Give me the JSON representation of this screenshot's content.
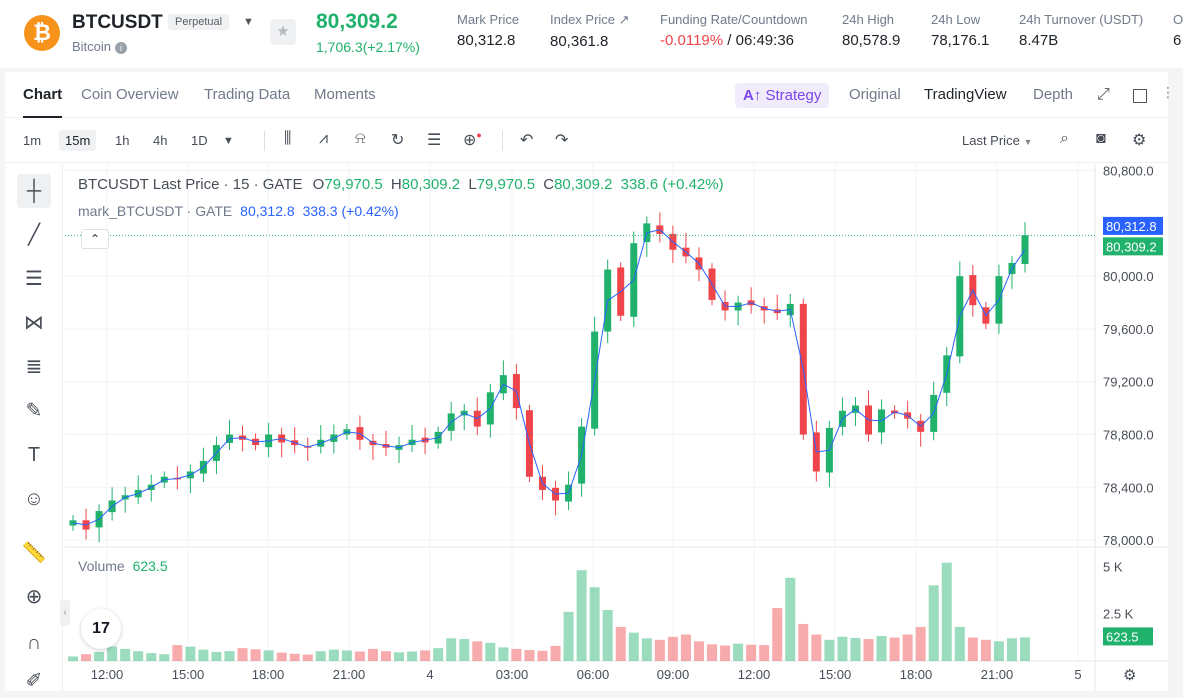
{
  "header": {
    "symbol": "BTCUSDT",
    "contract_type": "Perpetual",
    "coin_name": "Bitcoin",
    "last_price": "80,309.2",
    "change": "1,706.3(+2.17%)",
    "stats": [
      {
        "label": "Mark Price",
        "value": "80,312.8"
      },
      {
        "label": "Index Price ↗",
        "value": "80,361.8"
      },
      {
        "label": "Funding Rate/Countdown",
        "value_neg": "-0.0119%",
        "value": " / 06:49:36"
      },
      {
        "label": "24h High",
        "value": "80,578.9"
      },
      {
        "label": "24h Low",
        "value": "78,176.1"
      },
      {
        "label": "24h Turnover (USDT)",
        "value": "8.47B"
      },
      {
        "label": "O",
        "value": "6"
      }
    ]
  },
  "tabs": [
    "Chart",
    "Coin Overview",
    "Trading Data",
    "Moments"
  ],
  "strategy_label": "Strategy",
  "view_tabs": [
    "Original",
    "TradingView",
    "Depth"
  ],
  "timeframes": [
    "1m",
    "15m",
    "1h",
    "4h",
    "1D"
  ],
  "price_type": "Last Price",
  "legend": {
    "title": "BTCUSDT Last Price · 15 · GATE",
    "o_label": "O",
    "o": "79,970.5",
    "h_label": "H",
    "h": "80,309.2",
    "l_label": "L",
    "l": "79,970.5",
    "c_label": "C",
    "c": "80,309.2",
    "chg": "338.6 (+0.42%)",
    "mark_title": "mark_BTCUSDT · GATE",
    "mark_value": "80,312.8",
    "mark_chg": "338.3 (+0.42%)",
    "volume_label": "Volume",
    "volume_value": "623.5"
  },
  "colors": {
    "up": "#20b26c",
    "down": "#ef454a",
    "mark": "#2962ff"
  },
  "chart_data": {
    "type": "candlestick",
    "x_ticks": [
      "12:00",
      "15:00",
      "18:00",
      "21:00",
      "4",
      "03:00",
      "06:00",
      "09:00",
      "12:00",
      "15:00",
      "18:00",
      "21:00",
      "5"
    ],
    "y_ticks": [
      "80,800.0",
      "80,000.0",
      "79,600.0",
      "79,200.0",
      "78,800.0",
      "78,400.0",
      "78,000.0"
    ],
    "ylim": [
      77,
      940,
      80,
      850
    ],
    "volume_ticks": [
      "5 K",
      "2.5 K"
    ],
    "mark_price_tag": "80,312.8",
    "last_price_tag": "80,309.2",
    "volume_tag": "623.5",
    "close_path": [
      78150,
      78080,
      78220,
      78300,
      78340,
      78380,
      78420,
      78480,
      78460,
      78520,
      78600,
      78720,
      78800,
      78760,
      78720,
      78800,
      78740,
      78720,
      78700,
      78760,
      78800,
      78840,
      78760,
      78720,
      78700,
      78720,
      78760,
      78740,
      78820,
      78960,
      78980,
      78860,
      79120,
      79250,
      79000,
      78480,
      78380,
      78300,
      78420,
      78860,
      79580,
      80050,
      79700,
      80250,
      80400,
      80320,
      80200,
      80150,
      80050,
      79820,
      79740,
      79800,
      79780,
      79740,
      79720,
      79790,
      78800,
      78520,
      78850,
      78980,
      79020,
      78800,
      78990,
      78960,
      78920,
      78820,
      79100,
      79400,
      80000,
      79780,
      79640,
      80000,
      80100,
      80310
    ],
    "volume": [
      120,
      180,
      240,
      380,
      320,
      260,
      210,
      180,
      420,
      380,
      300,
      240,
      260,
      340,
      310,
      280,
      220,
      190,
      170,
      260,
      300,
      280,
      250,
      320,
      260,
      230,
      250,
      280,
      340,
      600,
      580,
      520,
      480,
      360,
      320,
      290,
      270,
      400,
      1300,
      2400,
      1950,
      1350,
      900,
      750,
      600,
      560,
      640,
      700,
      520,
      440,
      410,
      460,
      430,
      420,
      1400,
      2200,
      980,
      700,
      560,
      640,
      610,
      580,
      660,
      620,
      700,
      900,
      2000,
      2600,
      900,
      620,
      560,
      520,
      600,
      623
    ]
  }
}
